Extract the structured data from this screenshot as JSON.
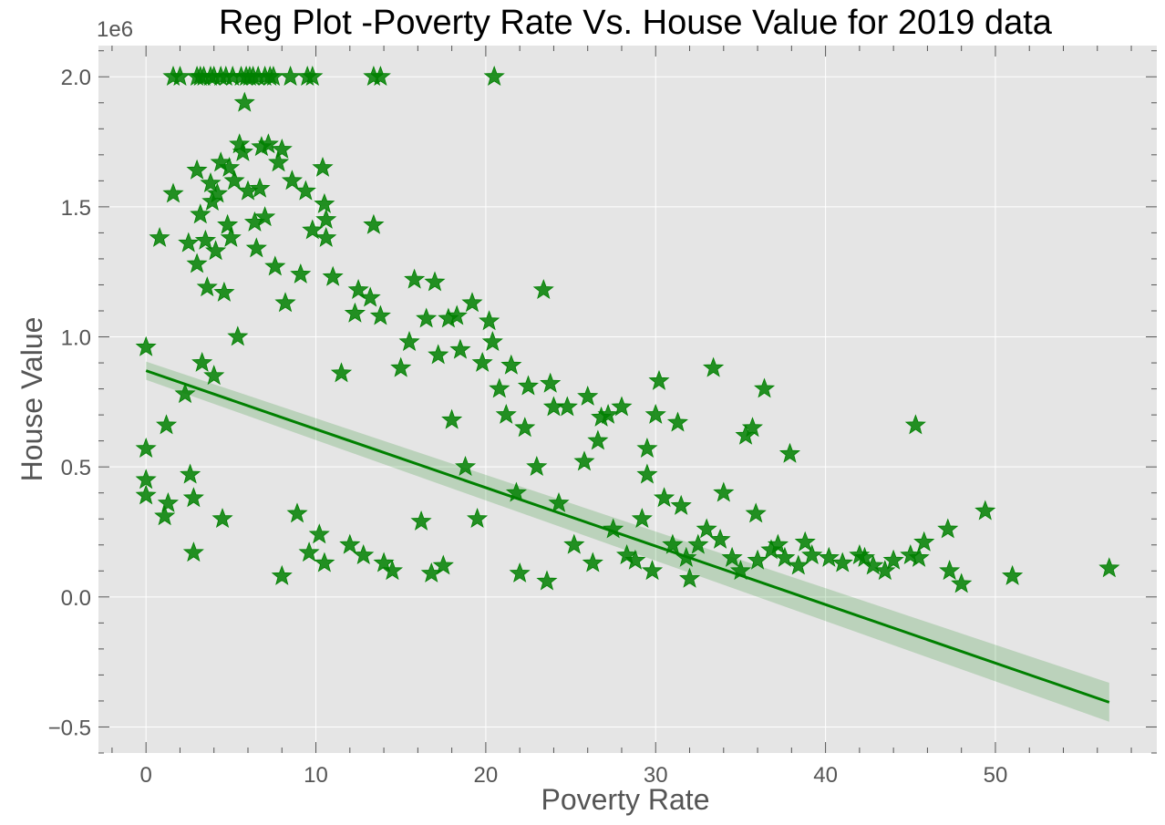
{
  "chart_data": {
    "type": "scatter",
    "title": "Reg Plot -Poverty Rate Vs. House Value for 2019 data",
    "xlabel": "Poverty Rate",
    "ylabel": "House Value",
    "y_offset_label": "1e6",
    "xlim": [
      -2.8,
      59.5
    ],
    "ylim": [
      -0.6,
      2.12
    ],
    "xticks": [
      0,
      10,
      20,
      30,
      40,
      50
    ],
    "xtick_labels": [
      "0",
      "10",
      "20",
      "30",
      "40",
      "50"
    ],
    "yticks": [
      -0.5,
      0.0,
      0.5,
      1.0,
      1.5,
      2.0
    ],
    "ytick_labels": [
      "−0.5",
      "0.0",
      "0.5",
      "1.0",
      "1.5",
      "2.0"
    ],
    "grid": true,
    "marker": "star",
    "colors": {
      "points": "#008000",
      "line": "#008000",
      "band": "#008000",
      "background": "#e5e5e5",
      "grid": "#ffffff"
    },
    "regression": {
      "x": [
        0,
        56.7
      ],
      "y": [
        0.87,
        -0.405
      ],
      "ci_upper": [
        0.905,
        -0.33
      ],
      "ci_lower": [
        0.835,
        -0.48
      ]
    },
    "points": [
      [
        0.0,
        0.96
      ],
      [
        0.0,
        0.57
      ],
      [
        0.0,
        0.45
      ],
      [
        0.0,
        0.39
      ],
      [
        0.8,
        1.38
      ],
      [
        1.2,
        0.66
      ],
      [
        1.1,
        0.31
      ],
      [
        1.3,
        0.36
      ],
      [
        1.6,
        2.0
      ],
      [
        1.6,
        1.55
      ],
      [
        2.0,
        2.0
      ],
      [
        2.3,
        0.78
      ],
      [
        2.5,
        1.36
      ],
      [
        2.6,
        0.47
      ],
      [
        2.8,
        0.17
      ],
      [
        2.8,
        0.38
      ],
      [
        3.0,
        2.0
      ],
      [
        3.0,
        1.64
      ],
      [
        3.0,
        1.28
      ],
      [
        3.2,
        2.0
      ],
      [
        3.2,
        1.47
      ],
      [
        3.3,
        0.9
      ],
      [
        3.4,
        2.0
      ],
      [
        3.5,
        1.37
      ],
      [
        3.6,
        1.19
      ],
      [
        3.8,
        2.0
      ],
      [
        3.8,
        1.59
      ],
      [
        3.9,
        1.52
      ],
      [
        4.0,
        2.0
      ],
      [
        4.0,
        0.85
      ],
      [
        4.1,
        1.33
      ],
      [
        4.2,
        1.55
      ],
      [
        4.4,
        2.0
      ],
      [
        4.4,
        1.67
      ],
      [
        4.5,
        0.3
      ],
      [
        4.6,
        1.17
      ],
      [
        4.7,
        2.0
      ],
      [
        4.8,
        1.43
      ],
      [
        4.9,
        1.65
      ],
      [
        5.0,
        1.38
      ],
      [
        5.1,
        2.0
      ],
      [
        5.2,
        1.6
      ],
      [
        5.4,
        1.0
      ],
      [
        5.5,
        1.74
      ],
      [
        5.6,
        2.0
      ],
      [
        5.7,
        1.71
      ],
      [
        5.8,
        1.9
      ],
      [
        5.9,
        2.0
      ],
      [
        6.0,
        1.56
      ],
      [
        6.1,
        2.0
      ],
      [
        6.3,
        2.0
      ],
      [
        6.4,
        1.44
      ],
      [
        6.5,
        1.34
      ],
      [
        6.6,
        2.0
      ],
      [
        6.7,
        1.57
      ],
      [
        6.8,
        1.73
      ],
      [
        7.0,
        2.0
      ],
      [
        7.0,
        1.46
      ],
      [
        7.2,
        1.74
      ],
      [
        7.3,
        2.0
      ],
      [
        7.5,
        2.0
      ],
      [
        7.6,
        1.27
      ],
      [
        7.8,
        1.67
      ],
      [
        8.0,
        1.72
      ],
      [
        8.0,
        0.08
      ],
      [
        8.2,
        1.13
      ],
      [
        8.5,
        2.0
      ],
      [
        8.6,
        1.6
      ],
      [
        8.9,
        0.32
      ],
      [
        9.1,
        1.24
      ],
      [
        9.4,
        1.56
      ],
      [
        9.5,
        2.0
      ],
      [
        9.6,
        0.17
      ],
      [
        9.8,
        2.0
      ],
      [
        9.8,
        1.41
      ],
      [
        10.2,
        0.24
      ],
      [
        10.4,
        1.65
      ],
      [
        10.5,
        1.51
      ],
      [
        10.6,
        1.45
      ],
      [
        10.6,
        1.38
      ],
      [
        10.5,
        0.13
      ],
      [
        11.0,
        1.23
      ],
      [
        11.5,
        0.86
      ],
      [
        12.0,
        0.2
      ],
      [
        12.3,
        1.09
      ],
      [
        12.5,
        1.18
      ],
      [
        12.8,
        0.16
      ],
      [
        13.2,
        1.15
      ],
      [
        13.4,
        2.0
      ],
      [
        13.4,
        1.43
      ],
      [
        13.8,
        2.0
      ],
      [
        13.8,
        1.08
      ],
      [
        14.0,
        0.13
      ],
      [
        14.5,
        0.1
      ],
      [
        15.0,
        0.88
      ],
      [
        15.5,
        0.98
      ],
      [
        15.8,
        1.22
      ],
      [
        16.2,
        0.29
      ],
      [
        16.5,
        1.07
      ],
      [
        16.8,
        0.09
      ],
      [
        17.0,
        1.21
      ],
      [
        17.2,
        0.93
      ],
      [
        17.5,
        0.12
      ],
      [
        17.8,
        1.07
      ],
      [
        18.0,
        0.68
      ],
      [
        18.3,
        1.08
      ],
      [
        18.5,
        0.95
      ],
      [
        18.8,
        0.5
      ],
      [
        19.2,
        1.13
      ],
      [
        19.5,
        0.3
      ],
      [
        19.8,
        0.9
      ],
      [
        20.2,
        1.06
      ],
      [
        20.4,
        0.98
      ],
      [
        20.5,
        2.0
      ],
      [
        20.8,
        0.8
      ],
      [
        21.2,
        0.7
      ],
      [
        21.5,
        0.89
      ],
      [
        21.8,
        0.4
      ],
      [
        22.0,
        0.09
      ],
      [
        22.3,
        0.65
      ],
      [
        22.5,
        0.81
      ],
      [
        23.0,
        0.5
      ],
      [
        23.4,
        1.18
      ],
      [
        23.6,
        0.06
      ],
      [
        23.8,
        0.82
      ],
      [
        24.0,
        0.73
      ],
      [
        24.3,
        0.36
      ],
      [
        24.8,
        0.73
      ],
      [
        25.2,
        0.2
      ],
      [
        25.8,
        0.52
      ],
      [
        26.0,
        0.77
      ],
      [
        26.3,
        0.13
      ],
      [
        26.6,
        0.6
      ],
      [
        26.8,
        0.69
      ],
      [
        27.2,
        0.7
      ],
      [
        27.5,
        0.26
      ],
      [
        28.0,
        0.73
      ],
      [
        28.3,
        0.16
      ],
      [
        28.8,
        0.14
      ],
      [
        29.2,
        0.3
      ],
      [
        29.5,
        0.57
      ],
      [
        29.5,
        0.47
      ],
      [
        29.8,
        0.1
      ],
      [
        30.0,
        0.7
      ],
      [
        30.2,
        0.83
      ],
      [
        30.5,
        0.38
      ],
      [
        31.0,
        0.2
      ],
      [
        31.3,
        0.67
      ],
      [
        31.5,
        0.35
      ],
      [
        31.8,
        0.15
      ],
      [
        32.0,
        0.07
      ],
      [
        32.5,
        0.2
      ],
      [
        33.0,
        0.26
      ],
      [
        33.4,
        0.88
      ],
      [
        33.8,
        0.22
      ],
      [
        34.0,
        0.4
      ],
      [
        34.5,
        0.15
      ],
      [
        35.0,
        0.1
      ],
      [
        35.3,
        0.62
      ],
      [
        35.7,
        0.65
      ],
      [
        35.9,
        0.32
      ],
      [
        36.0,
        0.14
      ],
      [
        36.4,
        0.8
      ],
      [
        36.8,
        0.18
      ],
      [
        37.2,
        0.2
      ],
      [
        37.6,
        0.15
      ],
      [
        37.9,
        0.55
      ],
      [
        38.4,
        0.12
      ],
      [
        38.8,
        0.21
      ],
      [
        39.2,
        0.16
      ],
      [
        40.2,
        0.15
      ],
      [
        41.0,
        0.13
      ],
      [
        42.0,
        0.16
      ],
      [
        42.3,
        0.15
      ],
      [
        42.8,
        0.12
      ],
      [
        43.5,
        0.1
      ],
      [
        44.0,
        0.14
      ],
      [
        45.0,
        0.16
      ],
      [
        45.3,
        0.66
      ],
      [
        45.5,
        0.15
      ],
      [
        45.8,
        0.21
      ],
      [
        47.2,
        0.26
      ],
      [
        47.3,
        0.1
      ],
      [
        48.0,
        0.05
      ],
      [
        49.4,
        0.33
      ],
      [
        51.0,
        0.08
      ],
      [
        56.7,
        0.11
      ]
    ]
  }
}
